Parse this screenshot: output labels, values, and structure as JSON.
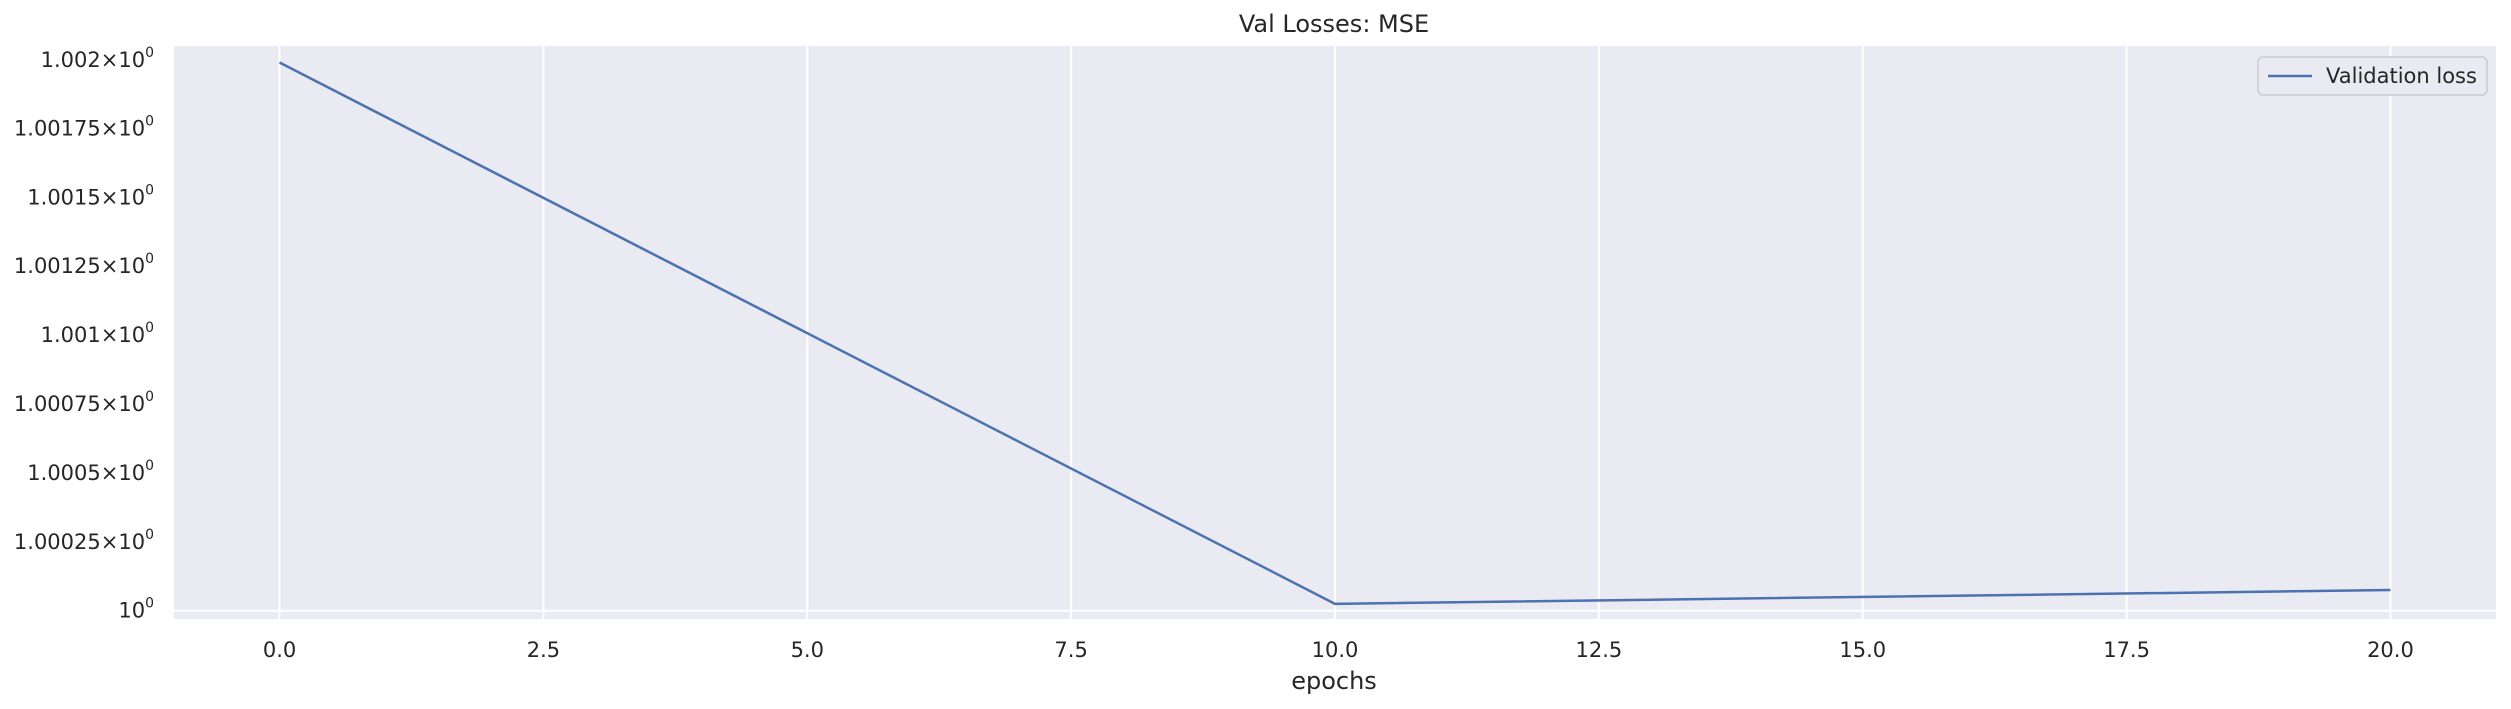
{
  "chart_data": {
    "type": "line",
    "title": "Val Losses:  MSE",
    "xlabel": "epochs",
    "ylabel": "",
    "x_ticks": [
      0.0,
      2.5,
      5.0,
      7.5,
      10.0,
      12.5,
      15.0,
      17.5,
      20.0
    ],
    "x_tick_labels": [
      "0.0",
      "2.5",
      "5.0",
      "7.5",
      "10.0",
      "12.5",
      "15.0",
      "17.5",
      "20.0"
    ],
    "y_scale": "log",
    "y_ticks": [
      1.0,
      1.00025,
      1.0005,
      1.00075,
      1.001,
      1.00125,
      1.0015,
      1.00175,
      1.002
    ],
    "y_tick_labels": [
      {
        "mant": "",
        "base": "10",
        "exp": "0"
      },
      {
        "mant": "1.00025",
        "base": "10",
        "exp": "0"
      },
      {
        "mant": "1.0005",
        "base": "10",
        "exp": "0"
      },
      {
        "mant": "1.00075",
        "base": "10",
        "exp": "0"
      },
      {
        "mant": "1.001",
        "base": "10",
        "exp": "0"
      },
      {
        "mant": "1.00125",
        "base": "10",
        "exp": "0"
      },
      {
        "mant": "1.0015",
        "base": "10",
        "exp": "0"
      },
      {
        "mant": "1.00175",
        "base": "10",
        "exp": "0"
      },
      {
        "mant": "1.002",
        "base": "10",
        "exp": "0"
      }
    ],
    "xlim": [
      -1.0,
      21.0
    ],
    "ylim": [
      0.99997,
      1.00205
    ],
    "grid": true,
    "background": "#EAEAF2",
    "grid_color": "#FFFFFF",
    "legend": {
      "placement": "top-right"
    },
    "series": [
      {
        "name": "Validation loss",
        "color": "#4C72B0",
        "x": [
          0,
          10,
          20
        ],
        "y": [
          1.00199,
          1.000025,
          1.000075
        ]
      }
    ]
  }
}
